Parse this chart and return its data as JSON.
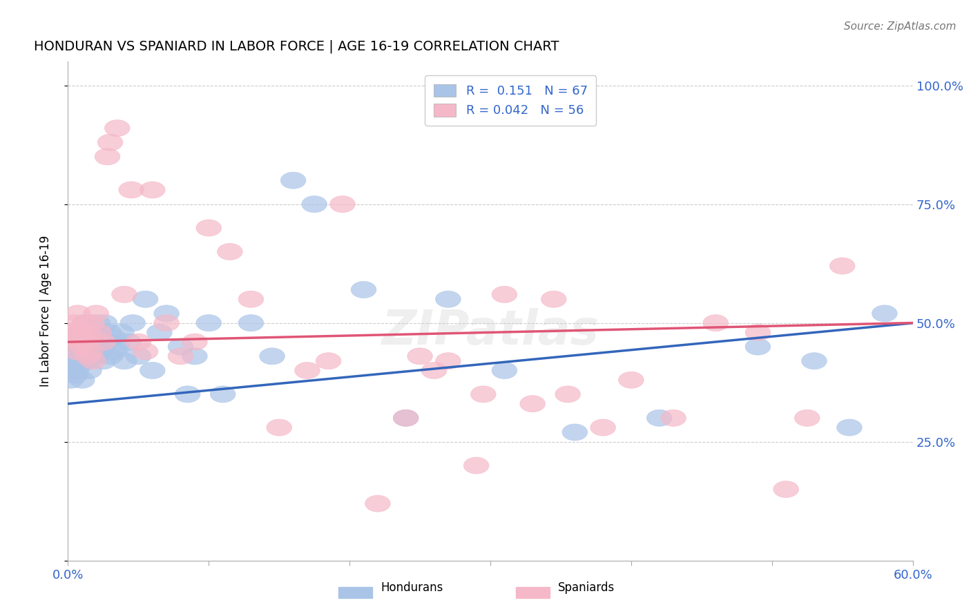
{
  "title": "HONDURAN VS SPANIARD IN LABOR FORCE | AGE 16-19 CORRELATION CHART",
  "source": "Source: ZipAtlas.com",
  "ylabel": "In Labor Force | Age 16-19",
  "xlim": [
    0.0,
    0.6
  ],
  "ylim": [
    0.0,
    1.0
  ],
  "ytick_positions": [
    0.0,
    0.25,
    0.5,
    0.75,
    1.0
  ],
  "yticklabels_right": [
    "",
    "25.0%",
    "50.0%",
    "75.0%",
    "100.0%"
  ],
  "xtick_positions": [
    0.0,
    0.1,
    0.2,
    0.3,
    0.4,
    0.5,
    0.6
  ],
  "xticklabels": [
    "0.0%",
    "",
    "",
    "",
    "",
    "",
    "60.0%"
  ],
  "legend_line1": "R =  0.151   N = 67",
  "legend_line2": "R = 0.042   N = 56",
  "honduran_color": "#aac4e8",
  "spaniard_color": "#f5b8c8",
  "honduran_line_color": "#3366bb",
  "spaniard_line_color": "#e05575",
  "watermark_text": "ZIPatlas",
  "honduran_x": [
    0.002,
    0.003,
    0.004,
    0.005,
    0.005,
    0.006,
    0.006,
    0.007,
    0.007,
    0.008,
    0.008,
    0.009,
    0.01,
    0.01,
    0.011,
    0.012,
    0.012,
    0.013,
    0.013,
    0.014,
    0.014,
    0.015,
    0.015,
    0.016,
    0.017,
    0.018,
    0.019,
    0.02,
    0.021,
    0.022,
    0.023,
    0.025,
    0.026,
    0.027,
    0.029,
    0.03,
    0.032,
    0.033,
    0.035,
    0.038,
    0.04,
    0.043,
    0.046,
    0.05,
    0.055,
    0.06,
    0.065,
    0.07,
    0.08,
    0.085,
    0.09,
    0.1,
    0.11,
    0.13,
    0.145,
    0.16,
    0.175,
    0.21,
    0.24,
    0.27,
    0.31,
    0.36,
    0.42,
    0.49,
    0.53,
    0.555,
    0.58
  ],
  "honduran_y": [
    0.38,
    0.42,
    0.45,
    0.39,
    0.43,
    0.4,
    0.44,
    0.46,
    0.41,
    0.43,
    0.47,
    0.44,
    0.38,
    0.48,
    0.42,
    0.46,
    0.5,
    0.43,
    0.48,
    0.42,
    0.46,
    0.4,
    0.47,
    0.44,
    0.43,
    0.48,
    0.45,
    0.43,
    0.5,
    0.47,
    0.44,
    0.42,
    0.5,
    0.46,
    0.48,
    0.43,
    0.47,
    0.44,
    0.45,
    0.48,
    0.42,
    0.46,
    0.5,
    0.43,
    0.55,
    0.4,
    0.48,
    0.52,
    0.45,
    0.35,
    0.43,
    0.5,
    0.35,
    0.5,
    0.43,
    0.8,
    0.75,
    0.57,
    0.3,
    0.55,
    0.4,
    0.27,
    0.3,
    0.45,
    0.42,
    0.28,
    0.52
  ],
  "spaniard_x": [
    0.003,
    0.004,
    0.005,
    0.006,
    0.007,
    0.008,
    0.009,
    0.01,
    0.011,
    0.012,
    0.013,
    0.014,
    0.015,
    0.016,
    0.017,
    0.018,
    0.02,
    0.022,
    0.025,
    0.028,
    0.03,
    0.035,
    0.04,
    0.045,
    0.05,
    0.055,
    0.06,
    0.07,
    0.08,
    0.09,
    0.1,
    0.115,
    0.13,
    0.15,
    0.17,
    0.195,
    0.22,
    0.25,
    0.27,
    0.295,
    0.31,
    0.33,
    0.355,
    0.38,
    0.4,
    0.43,
    0.46,
    0.49,
    0.525,
    0.55,
    0.185,
    0.24,
    0.26,
    0.29,
    0.345,
    0.51
  ],
  "spaniard_y": [
    0.47,
    0.5,
    0.48,
    0.44,
    0.52,
    0.46,
    0.49,
    0.45,
    0.48,
    0.5,
    0.46,
    0.43,
    0.48,
    0.44,
    0.5,
    0.42,
    0.52,
    0.48,
    0.46,
    0.85,
    0.88,
    0.91,
    0.56,
    0.78,
    0.46,
    0.44,
    0.78,
    0.5,
    0.43,
    0.46,
    0.7,
    0.65,
    0.55,
    0.28,
    0.4,
    0.75,
    0.12,
    0.43,
    0.42,
    0.35,
    0.56,
    0.33,
    0.35,
    0.28,
    0.38,
    0.3,
    0.5,
    0.48,
    0.3,
    0.62,
    0.42,
    0.3,
    0.4,
    0.2,
    0.55,
    0.15
  ]
}
